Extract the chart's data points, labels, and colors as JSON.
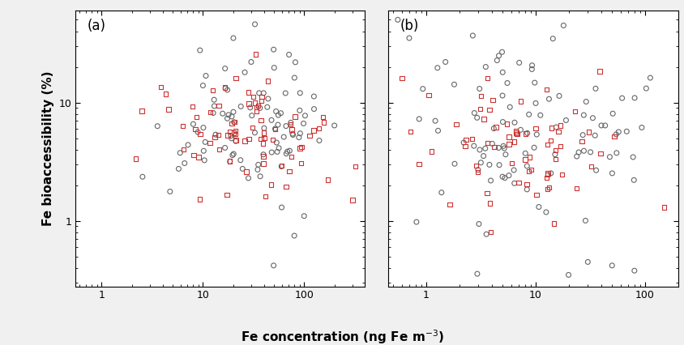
{
  "circle_color": "#666666",
  "square_color": "#cc3333",
  "marker_size_circle": 18,
  "marker_size_square": 15,
  "lw": 0.8,
  "xlim_a": [
    0.55,
    400
  ],
  "xlim_b": [
    0.45,
    200
  ],
  "ylim": [
    0.28,
    60
  ],
  "xlabel": "Fe concentration (ng Fe m$^{-3}$)",
  "ylabel": "Fe bioaccessibility (%)",
  "label_a": "(a)",
  "label_b": "(b)",
  "background_color": "#f0f0f0",
  "panel_bg": "#ffffff",
  "seed_a_circles": 42,
  "seed_a_squares": 7,
  "seed_b_circles": 123,
  "seed_b_squares": 99
}
